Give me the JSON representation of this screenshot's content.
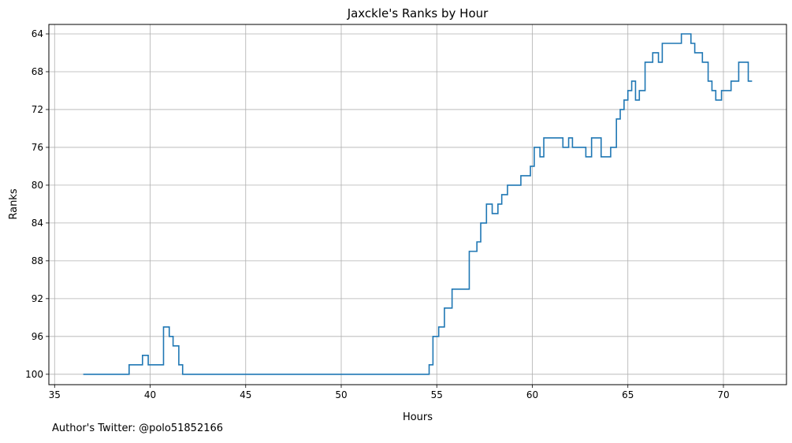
{
  "chart_data": {
    "type": "line",
    "drawstyle": "steps-post",
    "title": "Jaxckle's Ranks by Hour",
    "xlabel": "Hours",
    "ylabel": "Ranks",
    "xlim": [
      34.7,
      73.3
    ],
    "ylim": [
      101.1,
      63.0
    ],
    "y_inverted": true,
    "grid": true,
    "x_ticks": [
      35,
      40,
      45,
      50,
      55,
      60,
      65,
      70
    ],
    "y_ticks": [
      64,
      68,
      72,
      76,
      80,
      84,
      88,
      92,
      96,
      100
    ],
    "series": [
      {
        "name": "Ranks",
        "color": "#1f77b4",
        "x": [
          36.5,
          38.9,
          39.6,
          39.9,
          40.7,
          41.0,
          41.2,
          41.5,
          41.7,
          54.6,
          54.8,
          55.1,
          55.4,
          55.8,
          56.7,
          57.1,
          57.3,
          57.6,
          57.9,
          58.2,
          58.4,
          58.7,
          59.4,
          59.9,
          60.1,
          60.4,
          60.6,
          61.6,
          61.9,
          62.1,
          62.3,
          62.8,
          63.1,
          63.6,
          64.1,
          64.4,
          64.6,
          64.8,
          65.0,
          65.2,
          65.4,
          65.6,
          65.9,
          66.3,
          66.6,
          66.8,
          67.1,
          67.8,
          68.3,
          68.5,
          68.9,
          69.2,
          69.4,
          69.6,
          69.9,
          70.4,
          70.8,
          71.3,
          71.5
        ],
        "values": [
          100,
          99,
          98,
          99,
          95,
          96,
          97,
          99,
          100,
          99,
          96,
          95,
          93,
          91,
          87,
          86,
          84,
          82,
          83,
          82,
          81,
          80,
          79,
          78,
          76,
          77,
          75,
          76,
          75,
          76,
          76,
          77,
          75,
          77,
          76,
          73,
          72,
          71,
          70,
          69,
          71,
          70,
          67,
          66,
          67,
          65,
          65,
          64,
          65,
          66,
          67,
          69,
          70,
          71,
          70,
          69,
          67,
          69,
          69
        ]
      }
    ]
  },
  "footer": {
    "author_text": "Author's Twitter: @polo51852166"
  }
}
